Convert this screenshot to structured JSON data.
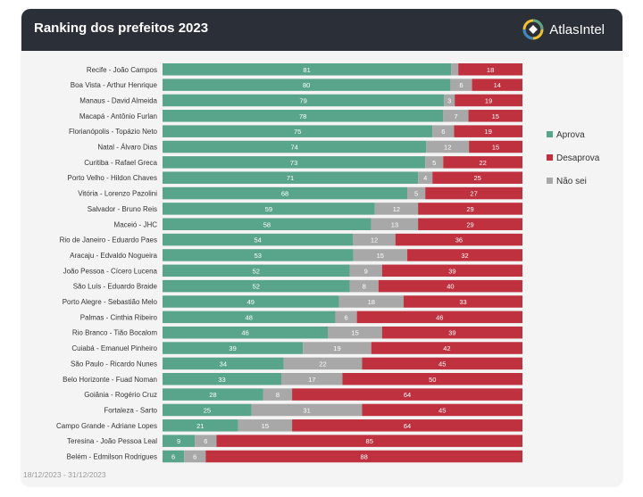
{
  "header": {
    "title": "Ranking dos prefeitos 2023",
    "brand": "AtlasIntel",
    "logo_icon": "atlasintel-logo-icon"
  },
  "footer": {
    "date_range": "18/12/2023 - 31/12/2023"
  },
  "colors": {
    "aprova": "#59a58b",
    "desaprova": "#c0313f",
    "nao_sei": "#a8a8a8",
    "header_bg": "#2a2f38"
  },
  "chart_data": {
    "type": "bar",
    "orientation": "horizontal",
    "stacked": true,
    "title": "Ranking dos prefeitos 2023",
    "xlim": [
      0,
      100
    ],
    "legend_position": "right",
    "categories": [
      "Recife - João Campos",
      "Boa Vista - Arthur Henrique",
      "Manaus - David Almeida",
      "Macapá - Antônio Furlan",
      "Florianópolis - Topázio Neto",
      "Natal - Álvaro Dias",
      "Curitiba - Rafael Greca",
      "Porto Velho - Hildon Chaves",
      "Vitória - Lorenzo Pazolini",
      "Salvador - Bruno Reis",
      "Maceió - JHC",
      "Rio de Janeiro - Eduardo Paes",
      "Aracaju - Edvaldo Nogueira",
      "João Pessoa - Cícero Lucena",
      "São Luís - Eduardo Braide",
      "Porto Alegre - Sebastião Melo",
      "Palmas - Cinthia Ribeiro",
      "Rio Branco - Tião Bocalom",
      "Cuiabá - Emanuel Pinheiro",
      "São Paulo - Ricardo Nunes",
      "Belo Horizonte - Fuad Noman",
      "Goiânia - Rogério Cruz",
      "Fortaleza - Sarto",
      "Campo Grande - Adriane Lopes",
      "Teresina - João Pessoa Leal",
      "Belém - Edmilson Rodrigues"
    ],
    "series": [
      {
        "name": "Aprova",
        "values": [
          81,
          80,
          79,
          78,
          75,
          74,
          73,
          71,
          68,
          59,
          58,
          54,
          53,
          52,
          52,
          49,
          48,
          46,
          39,
          34,
          33,
          28,
          25,
          21,
          9,
          6
        ]
      },
      {
        "name": "Desaprova",
        "values": [
          18,
          14,
          19,
          15,
          19,
          15,
          22,
          25,
          27,
          29,
          29,
          36,
          32,
          39,
          40,
          33,
          46,
          39,
          42,
          45,
          50,
          64,
          45,
          64,
          85,
          88
        ]
      },
      {
        "name": "Não sei",
        "values": [
          2,
          6,
          3,
          7,
          6,
          12,
          5,
          4,
          5,
          12,
          13,
          12,
          15,
          9,
          8,
          18,
          6,
          15,
          19,
          22,
          17,
          8,
          31,
          15,
          6,
          6
        ]
      }
    ],
    "stack_order": [
      "Aprova",
      "Não sei",
      "Desaprova"
    ],
    "label_hidden_below": {
      "Não sei": 2
    }
  }
}
